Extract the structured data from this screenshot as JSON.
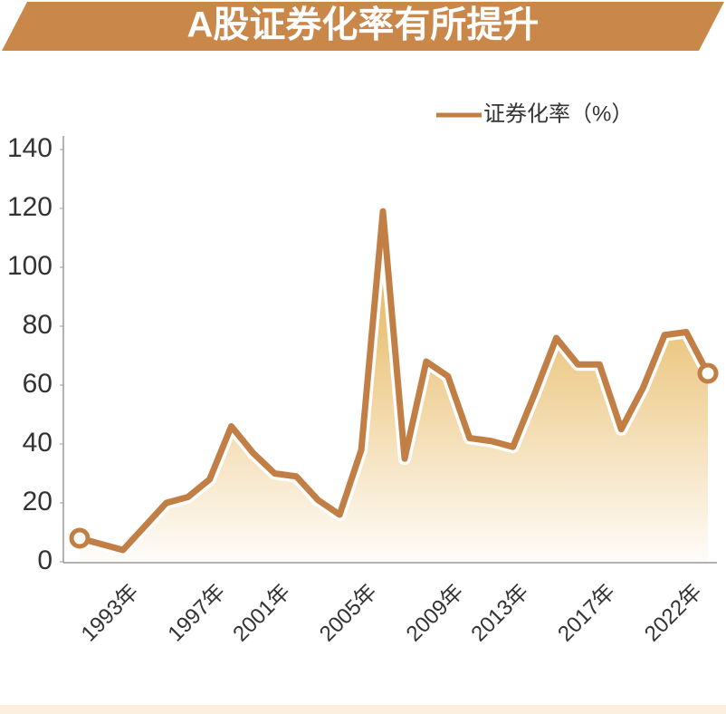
{
  "chart_data": {
    "type": "line",
    "title": "A股证券化率有所提升",
    "categories": [
      null,
      null,
      null,
      "1993年",
      null,
      null,
      null,
      "1997年",
      null,
      null,
      "2001年",
      null,
      null,
      null,
      "2005年",
      null,
      null,
      null,
      "2009年",
      null,
      null,
      "2013年",
      null,
      null,
      null,
      "2017年",
      null,
      null,
      null,
      "2022年"
    ],
    "series": [
      {
        "name": "证券化率（%）",
        "color": "#c27f45",
        "values": [
          8,
          6,
          4,
          12,
          20,
          22,
          28,
          46,
          37,
          30,
          29,
          21,
          16,
          38,
          119,
          35,
          68,
          63,
          42,
          41,
          39,
          57,
          76,
          67,
          67,
          45,
          59,
          77,
          78,
          64
        ]
      }
    ],
    "ylim": [
      0,
      140
    ],
    "yticks": [
      0,
      20,
      40,
      60,
      80,
      100,
      120,
      140
    ]
  }
}
